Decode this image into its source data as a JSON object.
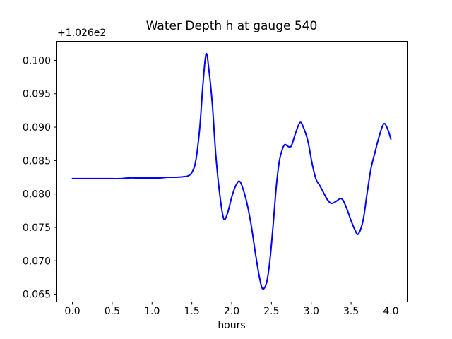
{
  "figure": {
    "background": "#ffffff",
    "frame_color": "#000000",
    "tick_color": "#000000",
    "text_color": "#000000"
  },
  "chart_data": {
    "type": "line",
    "title": "Water Depth h at gauge 540",
    "xlabel": "hours",
    "ylabel": "",
    "y_axis_offset_label": "+1.026e2",
    "y_axis_offset_value": 102.6,
    "grid": false,
    "legend": "none",
    "xlim": [
      -0.2,
      4.2
    ],
    "ylim": [
      0.0639,
      0.1029
    ],
    "xticks": [
      {
        "value": 0.0,
        "label": "0.0"
      },
      {
        "value": 0.5,
        "label": "0.5"
      },
      {
        "value": 1.0,
        "label": "1.0"
      },
      {
        "value": 1.5,
        "label": "1.5"
      },
      {
        "value": 2.0,
        "label": "2.0"
      },
      {
        "value": 2.5,
        "label": "2.5"
      },
      {
        "value": 3.0,
        "label": "3.0"
      },
      {
        "value": 3.5,
        "label": "3.5"
      },
      {
        "value": 4.0,
        "label": "4.0"
      }
    ],
    "yticks": [
      {
        "value": 0.065,
        "label": "0.065"
      },
      {
        "value": 0.07,
        "label": "0.070"
      },
      {
        "value": 0.075,
        "label": "0.075"
      },
      {
        "value": 0.08,
        "label": "0.080"
      },
      {
        "value": 0.085,
        "label": "0.085"
      },
      {
        "value": 0.09,
        "label": "0.090"
      },
      {
        "value": 0.095,
        "label": "0.095"
      },
      {
        "value": 0.1,
        "label": "0.100"
      }
    ],
    "series": [
      {
        "name": "water-depth-h",
        "color": "#0000ff",
        "line_width": 2,
        "x": [
          0.0,
          0.1,
          0.2,
          0.3,
          0.4,
          0.5,
          0.6,
          0.7,
          0.8,
          0.9,
          1.0,
          1.1,
          1.2,
          1.3,
          1.4,
          1.45,
          1.5,
          1.55,
          1.6,
          1.64,
          1.68,
          1.72,
          1.76,
          1.8,
          1.85,
          1.9,
          1.95,
          2.0,
          2.05,
          2.1,
          2.15,
          2.2,
          2.25,
          2.3,
          2.35,
          2.39,
          2.44,
          2.48,
          2.52,
          2.56,
          2.6,
          2.64,
          2.67,
          2.71,
          2.75,
          2.8,
          2.86,
          2.91,
          2.96,
          3.01,
          3.06,
          3.1,
          3.15,
          3.2,
          3.25,
          3.3,
          3.38,
          3.44,
          3.5,
          3.55,
          3.59,
          3.65,
          3.7,
          3.75,
          3.8,
          3.85,
          3.91,
          3.96,
          4.0
        ],
        "y": [
          0.0823,
          0.0823,
          0.0823,
          0.0823,
          0.0823,
          0.0823,
          0.0823,
          0.0824,
          0.0824,
          0.0824,
          0.0824,
          0.0824,
          0.0825,
          0.0825,
          0.0826,
          0.0827,
          0.0832,
          0.085,
          0.09,
          0.0965,
          0.101,
          0.098,
          0.093,
          0.086,
          0.08,
          0.0763,
          0.0772,
          0.0795,
          0.0812,
          0.0819,
          0.0805,
          0.0782,
          0.075,
          0.071,
          0.0675,
          0.0658,
          0.0668,
          0.07,
          0.0752,
          0.081,
          0.085,
          0.0868,
          0.0874,
          0.0871,
          0.0872,
          0.089,
          0.0907,
          0.0897,
          0.0878,
          0.0846,
          0.0822,
          0.0814,
          0.0803,
          0.0792,
          0.0786,
          0.0788,
          0.0793,
          0.078,
          0.076,
          0.0746,
          0.074,
          0.076,
          0.08,
          0.0838,
          0.0862,
          0.0885,
          0.0905,
          0.0897,
          0.0882
        ]
      }
    ]
  }
}
